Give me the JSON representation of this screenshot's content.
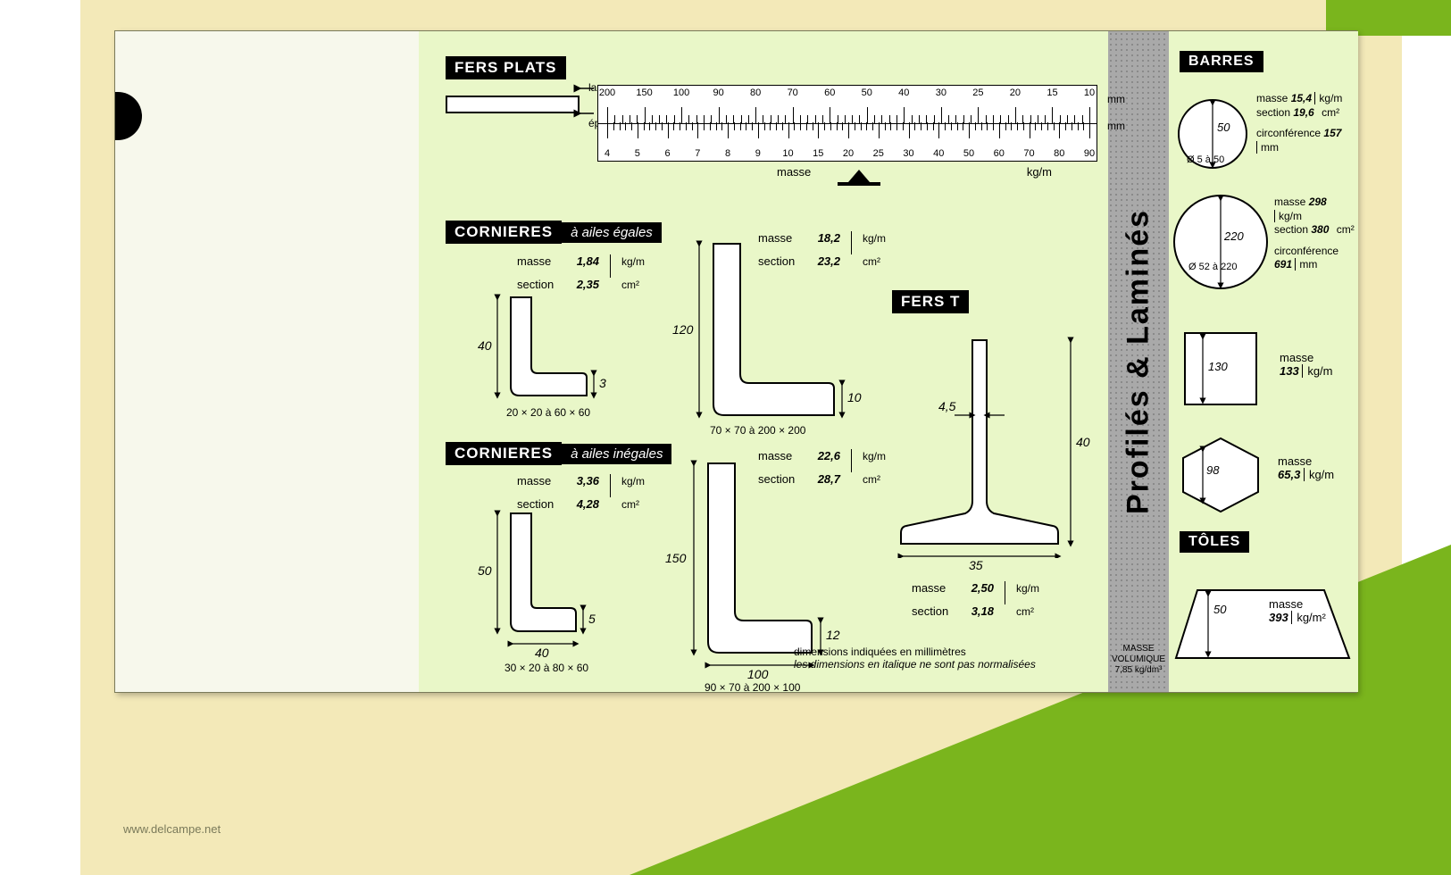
{
  "colors": {
    "card_bg": "#e9f7c8",
    "card_pale": "#f7f8ec",
    "grid_gray": "#a9a9a9",
    "black": "#000000",
    "white": "#ffffff",
    "outer_yellow": "#f3e9b8",
    "outer_green": "#7ab51d"
  },
  "title_strip": {
    "title": "Profilés & Laminés",
    "subtitle_l1": "MASSE VOLUMIQUE",
    "subtitle_l2": "7,85 kg/dm³"
  },
  "notch_right_num": "2",
  "fers_plats": {
    "label": "FERS PLATS",
    "largeur": "largeur",
    "epaisseur": "épaisseur",
    "ruler": {
      "top_labels": [
        "200",
        "150",
        "100",
        "90",
        "80",
        "70",
        "60",
        "50",
        "40",
        "30",
        "25",
        "20",
        "15",
        "10"
      ],
      "bot_labels": [
        "4",
        "5",
        "6",
        "7",
        "8",
        "9",
        "10",
        "15",
        "20",
        "25",
        "30",
        "40",
        "50",
        "60",
        "70",
        "80",
        "90"
      ],
      "unit_top": "mm",
      "unit_bot": "mm",
      "masse": "masse",
      "kgm": "kg/m"
    }
  },
  "corn_eq": {
    "label_main": "CORNIERES",
    "label_sub": "à ailes égales",
    "small": {
      "h": "40",
      "t": "3",
      "range": "20 × 20 à 60 × 60",
      "masse": "1,84",
      "section": "2,35"
    },
    "large": {
      "h": "120",
      "t": "10",
      "range": "70 × 70 à 200 × 200",
      "masse": "18,2",
      "section": "23,2"
    }
  },
  "corn_ineq": {
    "label_main": "CORNIERES",
    "label_sub": "à ailes inégales",
    "small": {
      "h": "50",
      "w": "40",
      "t": "5",
      "range": "30 × 20 à 80 × 60",
      "masse": "3,36",
      "section": "4,28"
    },
    "large": {
      "h": "150",
      "w": "100",
      "t": "12",
      "range": "90 × 70 à 200 × 100",
      "masse": "22,6",
      "section": "28,7"
    }
  },
  "fers_t": {
    "label": "FERS T",
    "h": "40",
    "w": "35",
    "t": "4,5",
    "masse": "2,50",
    "section": "3,18"
  },
  "ms_labels": {
    "masse": "masse",
    "section": "section",
    "u_m": "kg/m",
    "u_s": "cm²"
  },
  "footnote": {
    "l1": "dimensions indiquées en millimètres",
    "l2": "les dimensions en italique ne sont pas normalisées"
  },
  "barres": {
    "label": "BARRES",
    "circ_label": "circonférence",
    "u_circ": "mm",
    "round_small": {
      "d": "50",
      "range": "Ø 5 à 50",
      "masse": "15,4",
      "section": "19,6",
      "circ": "157"
    },
    "round_large": {
      "d": "220",
      "range": "Ø 52 à 220",
      "masse": "298",
      "section": "380",
      "circ": "691"
    },
    "square": {
      "a": "130",
      "masse": "133"
    },
    "hex": {
      "a": "98",
      "masse": "65,3"
    }
  },
  "toles": {
    "label": "TÔLES",
    "t": "50",
    "masse": "393",
    "u": "kg/m²"
  },
  "masse_only_label": "masse",
  "watermark": "www.delcampe.net"
}
